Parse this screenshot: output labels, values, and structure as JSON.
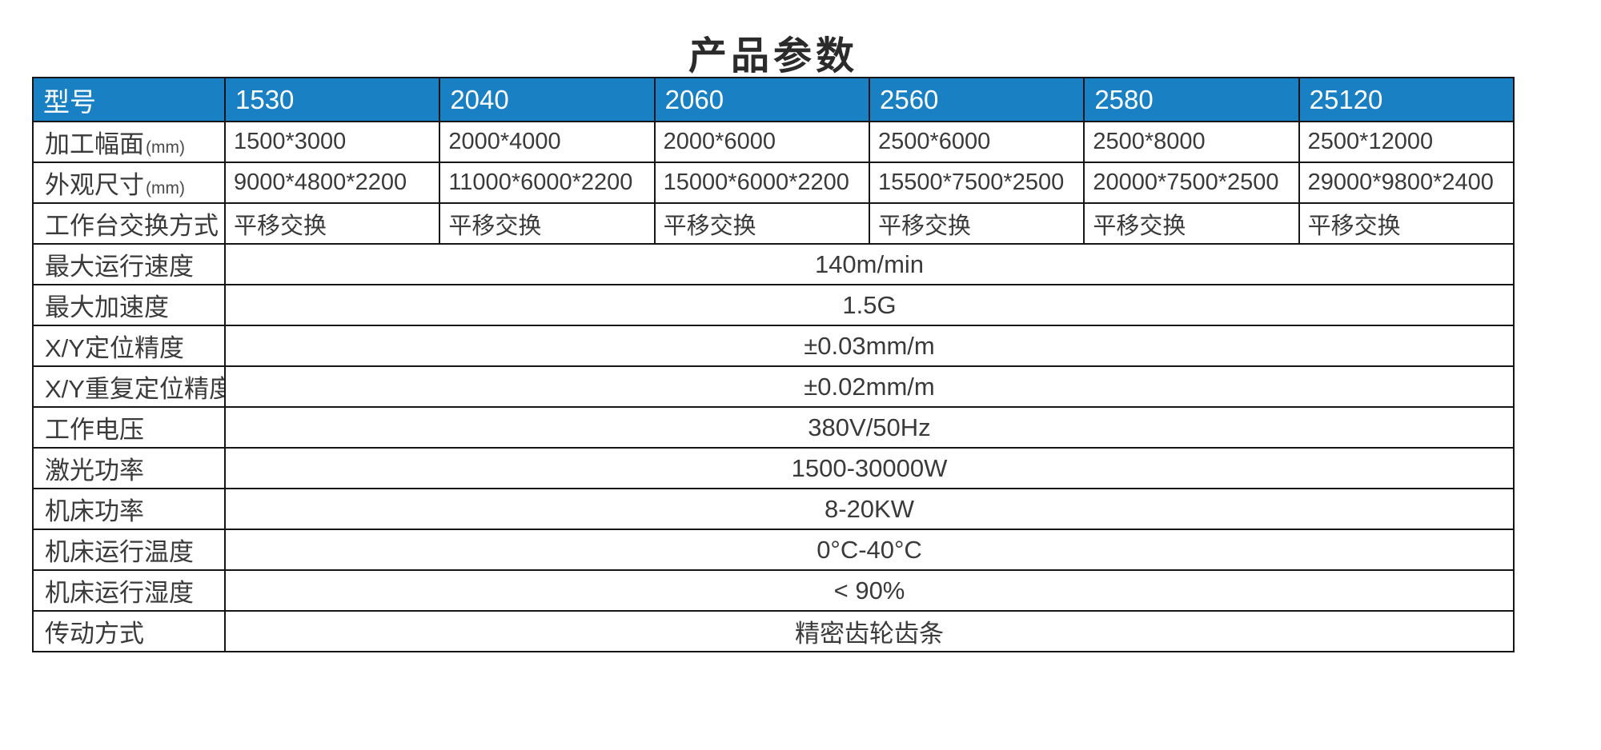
{
  "title": "产品参数",
  "colors": {
    "header_bg": "#1a80c4",
    "header_text": "#ffffff",
    "border": "#161616",
    "body_text": "#3a3a3a",
    "title_text": "#2b2b2b"
  },
  "table": {
    "header": {
      "label": "型号",
      "models": [
        "1530",
        "2040",
        "2060",
        "2560",
        "2580",
        "25120"
      ]
    },
    "per_model_rows": [
      {
        "label": "加工幅面",
        "label_suffix": "(mm)",
        "values": [
          "1500*3000",
          "2000*4000",
          "2000*6000",
          "2500*6000",
          "2500*8000",
          "2500*12000"
        ]
      },
      {
        "label": "外观尺寸",
        "label_suffix": "(mm)",
        "values": [
          "9000*4800*2200",
          "11000*6000*2200",
          "15000*6000*2200",
          "15500*7500*2500",
          "20000*7500*2500",
          "29000*9800*2400"
        ]
      },
      {
        "label": "工作台交换方式",
        "label_suffix": "",
        "values": [
          "平移交换",
          "平移交换",
          "平移交换",
          "平移交换",
          "平移交换",
          "平移交换"
        ]
      }
    ],
    "merged_rows": [
      {
        "label": "最大运行速度",
        "value": "140m/min"
      },
      {
        "label": "最大加速度",
        "value": "1.5G"
      },
      {
        "label": "X/Y定位精度",
        "value": "±0.03mm/m"
      },
      {
        "label": "X/Y重复定位精度",
        "value": "±0.02mm/m"
      },
      {
        "label": "工作电压",
        "value": "380V/50Hz"
      },
      {
        "label": "激光功率",
        "value": "1500-30000W"
      },
      {
        "label": "机床功率",
        "value": "8-20KW"
      },
      {
        "label": "机床运行温度",
        "value": "0°C-40°C"
      },
      {
        "label": "机床运行湿度",
        "value": "< 90%"
      },
      {
        "label": "传动方式",
        "value": "精密齿轮齿条"
      }
    ]
  }
}
